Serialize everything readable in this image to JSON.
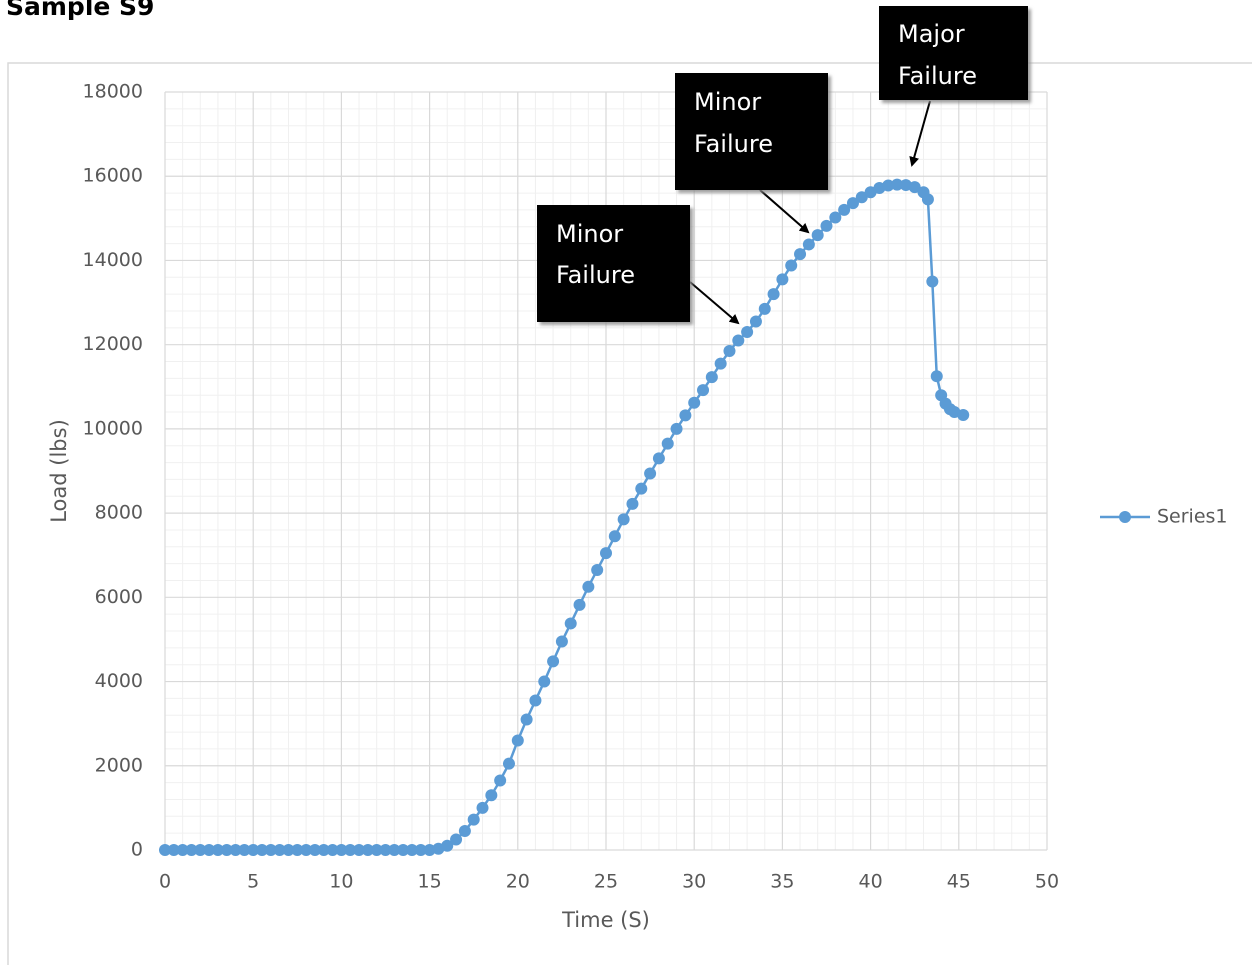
{
  "chart_data": {
    "type": "line",
    "title": "Sample S9",
    "x_label": "Time (S)",
    "y_label": "Load (lbs)",
    "xlim": [
      0,
      50
    ],
    "xticks": [
      0,
      5,
      10,
      15,
      20,
      25,
      30,
      35,
      40,
      45,
      50
    ],
    "ylim": [
      0,
      18000
    ],
    "yticks": [
      0,
      2000,
      4000,
      6000,
      8000,
      10000,
      12000,
      14000,
      16000,
      18000
    ],
    "grid": true,
    "minor_grid": true,
    "legend": "right",
    "x": [
      0,
      0.5,
      1,
      1.5,
      2,
      2.5,
      3,
      3.5,
      4,
      4.5,
      5,
      5.5,
      6,
      6.5,
      7,
      7.5,
      8,
      8.5,
      9,
      9.5,
      10,
      10.5,
      11,
      11.5,
      12,
      12.5,
      13,
      13.5,
      14,
      14.5,
      15,
      15.5,
      16,
      16.5,
      17,
      17.5,
      18,
      18.5,
      19,
      19.5,
      20,
      20.5,
      21,
      21.5,
      22,
      22.5,
      23,
      23.5,
      24,
      24.5,
      25,
      25.5,
      26,
      26.5,
      27,
      27.5,
      28,
      28.5,
      29,
      29.5,
      30,
      30.5,
      31,
      31.5,
      32,
      32.5,
      33,
      33.5,
      34,
      34.5,
      35,
      35.5,
      36,
      36.5,
      37,
      37.5,
      38,
      38.5,
      39,
      39.5,
      40,
      40.5,
      41,
      41.5,
      42,
      42.5,
      43,
      43.25,
      43.5,
      43.75,
      44,
      44.25,
      44.5,
      44.75,
      45.25
    ],
    "series": [
      {
        "name": "Series1",
        "color": "#5b9bd5",
        "values": [
          0,
          0,
          0,
          0,
          0,
          0,
          0,
          0,
          0,
          0,
          0,
          0,
          0,
          0,
          0,
          0,
          0,
          0,
          0,
          0,
          0,
          0,
          0,
          0,
          0,
          0,
          0,
          0,
          0,
          0,
          0,
          30,
          100,
          250,
          450,
          720,
          1000,
          1300,
          1650,
          2050,
          2600,
          3100,
          3550,
          4000,
          4480,
          4950,
          5380,
          5820,
          6250,
          6650,
          7050,
          7450,
          7850,
          8220,
          8580,
          8940,
          9300,
          9650,
          10000,
          10320,
          10620,
          10920,
          11230,
          11550,
          11850,
          12100,
          12300,
          12550,
          12850,
          13200,
          13550,
          13880,
          14150,
          14380,
          14600,
          14820,
          15020,
          15200,
          15360,
          15500,
          15620,
          15720,
          15780,
          15800,
          15790,
          15740,
          15620,
          15450,
          13500,
          11250,
          10800,
          10600,
          10470,
          10400,
          10330
        ]
      }
    ],
    "annotations": [
      {
        "text": [
          "Minor",
          "Failure"
        ]
      },
      {
        "text": [
          "Minor",
          "Failure"
        ]
      },
      {
        "text": [
          "Major",
          "Failure"
        ]
      }
    ]
  }
}
